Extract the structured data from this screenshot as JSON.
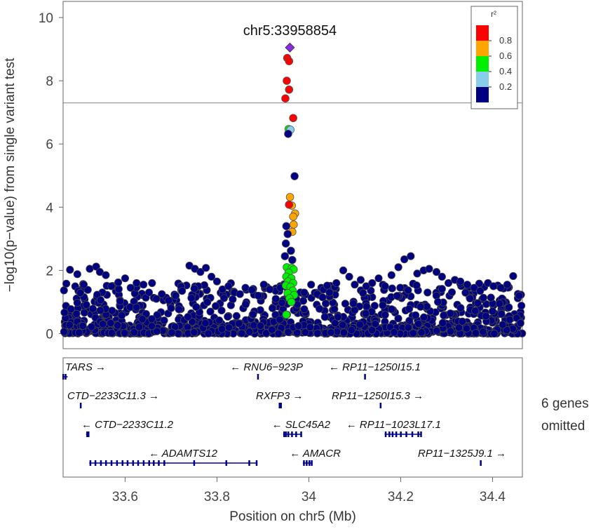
{
  "chart_data": {
    "type": "scatter",
    "title": "",
    "ylabel": "−log10(p−value) from single variant test",
    "xlabel": "Position on chr5 (Mb)",
    "xlim": [
      33.465,
      34.465
    ],
    "ylim": [
      0,
      10
    ],
    "x_ticks": [
      33.6,
      33.8,
      34,
      34.2,
      34.4
    ],
    "x_tick_labels": [
      "33.6",
      "33.8",
      "34",
      "34.2",
      "34.4"
    ],
    "y_ticks": [
      0,
      2,
      4,
      6,
      8,
      10
    ],
    "y_tick_labels": [
      "0",
      "2",
      "4",
      "6",
      "8",
      "10"
    ],
    "significance_line_y": 7.3,
    "lead_snp": {
      "label": "chr5:33958854",
      "x": 33.9588,
      "y": 9.05,
      "color": "#8a2be2"
    },
    "legend": {
      "title": "r²",
      "position": "top-right",
      "bins": [
        {
          "label": "0.8",
          "color": "#ff0000"
        },
        {
          "label": "0.6",
          "color": "#ffa500"
        },
        {
          "label": "0.4",
          "color": "#00ee00"
        },
        {
          "label": "0.2",
          "color": "#87ceeb"
        },
        {
          "label": "",
          "color": "#000080"
        }
      ]
    },
    "highlight_points": [
      {
        "x": 33.953,
        "y": 8.72,
        "r2": 0.9
      },
      {
        "x": 33.957,
        "y": 8.62,
        "r2": 0.9
      },
      {
        "x": 33.952,
        "y": 8.0,
        "r2": 0.9
      },
      {
        "x": 33.957,
        "y": 7.72,
        "r2": 0.9
      },
      {
        "x": 33.949,
        "y": 7.44,
        "r2": 0.9
      },
      {
        "x": 33.966,
        "y": 6.82,
        "r2": 0.9
      },
      {
        "x": 33.956,
        "y": 6.47,
        "r2": 0.5
      },
      {
        "x": 33.96,
        "y": 6.45,
        "r2": 0.3
      },
      {
        "x": 33.955,
        "y": 6.32,
        "r2": 0.1
      },
      {
        "x": 33.969,
        "y": 4.98,
        "r2": 0.1
      },
      {
        "x": 33.959,
        "y": 4.32,
        "r2": 0.7
      },
      {
        "x": 33.963,
        "y": 4.05,
        "r2": 0.7
      },
      {
        "x": 33.957,
        "y": 4.08,
        "r2": 0.9
      },
      {
        "x": 33.97,
        "y": 3.8,
        "r2": 0.7
      },
      {
        "x": 33.966,
        "y": 3.7,
        "r2": 0.7
      },
      {
        "x": 33.967,
        "y": 3.45,
        "r2": 0.7
      },
      {
        "x": 33.964,
        "y": 3.22,
        "r2": 0.7
      },
      {
        "x": 33.951,
        "y": 3.4,
        "r2": 0.1
      },
      {
        "x": 33.954,
        "y": 3.15,
        "r2": 0.1
      },
      {
        "x": 33.95,
        "y": 2.85,
        "r2": 0.1
      },
      {
        "x": 33.961,
        "y": 2.62,
        "r2": 0.1
      },
      {
        "x": 33.948,
        "y": 2.45,
        "r2": 0.1
      },
      {
        "x": 33.964,
        "y": 2.33,
        "r2": 0.1
      },
      {
        "x": 33.952,
        "y": 2.1,
        "r2": 0.5
      },
      {
        "x": 33.963,
        "y": 2.08,
        "r2": 0.5
      },
      {
        "x": 33.967,
        "y": 2.03,
        "r2": 0.5
      },
      {
        "x": 33.956,
        "y": 1.93,
        "r2": 0.5
      },
      {
        "x": 33.951,
        "y": 1.8,
        "r2": 0.5
      },
      {
        "x": 33.962,
        "y": 1.75,
        "r2": 0.5
      },
      {
        "x": 33.955,
        "y": 1.65,
        "r2": 0.5
      },
      {
        "x": 33.966,
        "y": 1.6,
        "r2": 0.5
      },
      {
        "x": 33.95,
        "y": 1.52,
        "r2": 0.5
      },
      {
        "x": 33.96,
        "y": 1.48,
        "r2": 0.5
      },
      {
        "x": 33.965,
        "y": 1.36,
        "r2": 0.5
      },
      {
        "x": 33.954,
        "y": 1.28,
        "r2": 0.5
      },
      {
        "x": 33.968,
        "y": 1.22,
        "r2": 0.5
      },
      {
        "x": 33.958,
        "y": 1.12,
        "r2": 0.5
      },
      {
        "x": 33.962,
        "y": 1.0,
        "r2": 0.5
      },
      {
        "x": 33.951,
        "y": 0.6,
        "r2": 0.5
      }
    ],
    "background_points": {
      "r2": 0.05,
      "note_hidden": false,
      "points": [
        [
          33.472,
          1.58
        ],
        [
          33.48,
          2.02
        ],
        [
          33.496,
          1.88
        ],
        [
          33.51,
          1.55
        ],
        [
          33.523,
          2.05
        ],
        [
          33.537,
          2.12
        ],
        [
          33.545,
          1.95
        ],
        [
          33.558,
          1.85
        ],
        [
          33.57,
          1.5
        ],
        [
          33.585,
          1.62
        ],
        [
          33.6,
          1.75
        ],
        [
          33.612,
          1.45
        ],
        [
          33.625,
          1.6
        ],
        [
          33.64,
          1.55
        ],
        [
          33.652,
          1.3
        ],
        [
          33.668,
          1.1
        ],
        [
          33.68,
          1.25
        ],
        [
          33.695,
          1.05
        ],
        [
          33.71,
          1.2
        ],
        [
          33.724,
          1.35
        ],
        [
          33.74,
          2.15
        ],
        [
          33.752,
          2.05
        ],
        [
          33.764,
          1.95
        ],
        [
          33.776,
          2.08
        ],
        [
          33.788,
          1.8
        ],
        [
          33.8,
          1.65
        ],
        [
          33.812,
          1.4
        ],
        [
          33.825,
          1.5
        ],
        [
          33.838,
          1.3
        ],
        [
          33.85,
          1.25
        ],
        [
          33.862,
          1.45
        ],
        [
          33.876,
          1.38
        ],
        [
          33.89,
          1.2
        ],
        [
          33.902,
          1.55
        ],
        [
          33.915,
          1.4
        ],
        [
          33.928,
          1.1
        ],
        [
          33.938,
          1.45
        ],
        [
          33.99,
          1.3
        ],
        [
          34.005,
          1.55
        ],
        [
          34.018,
          1.25
        ],
        [
          34.03,
          1.15
        ],
        [
          34.045,
          1.3
        ],
        [
          34.06,
          1.6
        ],
        [
          34.075,
          2.0
        ],
        [
          34.088,
          1.8
        ],
        [
          34.1,
          1.55
        ],
        [
          34.113,
          1.7
        ],
        [
          34.125,
          1.5
        ],
        [
          34.138,
          1.6
        ],
        [
          34.152,
          1.75
        ],
        [
          34.166,
          1.5
        ],
        [
          34.18,
          1.85
        ],
        [
          34.195,
          2.1
        ],
        [
          34.208,
          2.35
        ],
        [
          34.222,
          2.45
        ],
        [
          34.236,
          1.9
        ],
        [
          34.25,
          2.0
        ],
        [
          34.262,
          2.05
        ],
        [
          34.278,
          1.95
        ],
        [
          34.29,
          1.8
        ],
        [
          34.304,
          1.6
        ],
        [
          34.318,
          1.7
        ],
        [
          34.33,
          1.65
        ],
        [
          34.345,
          1.55
        ],
        [
          34.36,
          1.45
        ],
        [
          34.373,
          1.35
        ],
        [
          34.39,
          1.6
        ],
        [
          34.402,
          1.5
        ],
        [
          34.418,
          1.45
        ],
        [
          34.432,
          1.55
        ],
        [
          34.445,
          1.82
        ],
        [
          34.458,
          1.2
        ]
      ]
    }
  },
  "genes": {
    "omitted_note_line1": "6 genes",
    "omitted_note_line2": "omitted",
    "items": [
      {
        "name": "TARS",
        "start": 33.46,
        "end": 33.475,
        "strand": "+",
        "row": 0,
        "label_side": "right",
        "exons": [
          33.462,
          33.47
        ]
      },
      {
        "name": "RNU6−923P",
        "start": 33.888,
        "end": 33.89,
        "strand": "-",
        "row": 0,
        "label_side": "left",
        "exons": [
          33.889
        ]
      },
      {
        "name": "RP11−1250I15.1",
        "start": 34.121,
        "end": 34.124,
        "strand": "-",
        "row": 0,
        "label_side": "left",
        "exons": [
          34.122
        ]
      },
      {
        "name": "CTD−2233C11.3",
        "start": 33.502,
        "end": 33.504,
        "strand": "+",
        "row": 1,
        "label_side": "right",
        "exons": [
          33.503
        ]
      },
      {
        "name": "RXFP3",
        "start": 33.935,
        "end": 33.94,
        "strand": "+",
        "row": 1,
        "label_side": "right",
        "exons": [
          33.936,
          33.939
        ]
      },
      {
        "name": "RP11−1250I15.3",
        "start": 34.155,
        "end": 34.158,
        "strand": "+",
        "row": 1,
        "label_side": "right",
        "exons": [
          34.156
        ]
      },
      {
        "name": "CTD−2233C11.2",
        "start": 33.515,
        "end": 33.522,
        "strand": "-",
        "row": 2,
        "label_side": "left",
        "exons": [
          33.517,
          33.52
        ]
      },
      {
        "name": "SLC45A2",
        "start": 33.944,
        "end": 33.985,
        "strand": "-",
        "row": 2,
        "label_side": "left",
        "exons": [
          33.946,
          33.95,
          33.955,
          33.963,
          33.972,
          33.983
        ]
      },
      {
        "name": "RP11−1023L17.1",
        "start": 34.165,
        "end": 34.245,
        "strand": "-",
        "row": 2,
        "label_side": "left",
        "exons": [
          34.167,
          34.175,
          34.182,
          34.19,
          34.2,
          34.212,
          34.225,
          34.238,
          34.244
        ]
      },
      {
        "name": "ADAMTS12",
        "start": 33.522,
        "end": 33.888,
        "strand": "-",
        "row": 3,
        "label_side": "left",
        "exons": [
          33.524,
          33.535,
          33.547,
          33.558,
          33.57,
          33.582,
          33.594,
          33.605,
          33.617,
          33.628,
          33.64,
          33.652,
          33.662,
          33.673,
          33.685,
          33.75,
          33.82,
          33.87,
          33.886
        ]
      },
      {
        "name": "AMACR",
        "start": 33.987,
        "end": 34.008,
        "strand": "-",
        "row": 3,
        "label_side": "left",
        "exons": [
          33.989,
          33.995,
          34.001,
          34.006
        ]
      },
      {
        "name": "RP11−1325J9.1",
        "start": 34.373,
        "end": 34.376,
        "strand": "+",
        "row": 3,
        "label_side": "right",
        "exons": [
          34.374
        ]
      }
    ]
  }
}
